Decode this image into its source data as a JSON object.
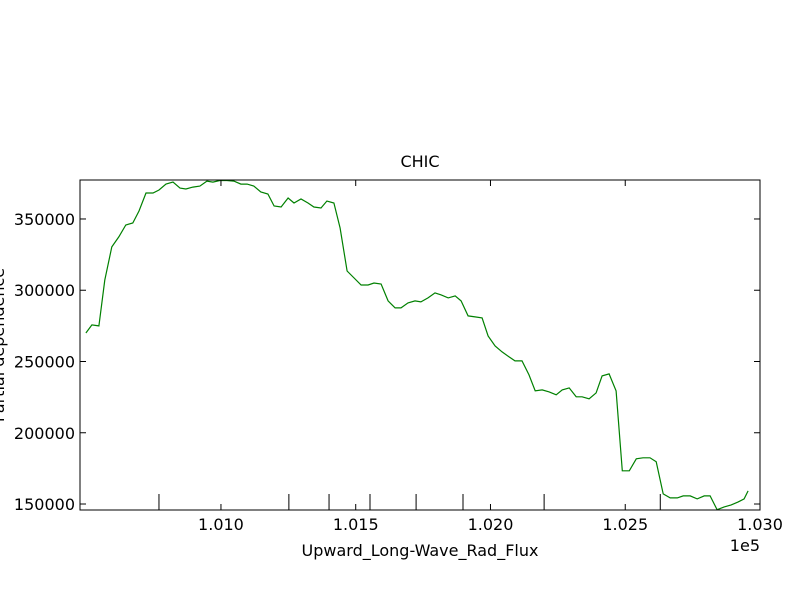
{
  "chart_data": {
    "type": "line",
    "title": "CHIC",
    "x_label": "Upward_Long-Wave_Rad_Flux",
    "y_label": "Partial dependence",
    "x_offset_label": "1e5",
    "xlim": [
      100477,
      103000
    ],
    "ylim": [
      145800,
      377350
    ],
    "xticks": [
      {
        "value": 101000,
        "label": "1.010"
      },
      {
        "value": 101500,
        "label": "1.015"
      },
      {
        "value": 102000,
        "label": "1.020"
      },
      {
        "value": 102500,
        "label": "1.025"
      },
      {
        "value": 103000,
        "label": "1.030"
      }
    ],
    "yticks": [
      150000,
      200000,
      250000,
      300000,
      350000
    ],
    "deciles": [
      100770,
      101252,
      101401,
      101553,
      101724,
      101898,
      102199,
      102630
    ],
    "x": [
      100499,
      100521,
      100547,
      100569,
      100595,
      100621,
      100647,
      100673,
      100696,
      100722,
      100748,
      100770,
      100796,
      100822,
      100848,
      100870,
      100896,
      100922,
      100948,
      100970,
      100996,
      101022,
      101048,
      101074,
      101097,
      101122,
      101148,
      101174,
      101197,
      101223,
      101249,
      101271,
      101297,
      101323,
      101345,
      101371,
      101393,
      101419,
      101442,
      101468,
      101494,
      101520,
      101546,
      101568,
      101594,
      101620,
      101646,
      101668,
      101694,
      101720,
      101742,
      101768,
      101794,
      101817,
      101843,
      101869,
      101891,
      101917,
      101943,
      101969,
      101991,
      102017,
      102043,
      102069,
      102091,
      102117,
      102143,
      102166,
      102192,
      102218,
      102244,
      102266,
      102292,
      102318,
      102340,
      102366,
      102392,
      102414,
      102440,
      102466,
      102489,
      102515,
      102541,
      102566,
      102592,
      102615,
      102641,
      102667,
      102693,
      102715,
      102741,
      102767,
      102793,
      102815,
      102841,
      102867,
      102893,
      102919,
      102941,
      102956
    ],
    "series": [
      {
        "color": "#008000",
        "values": [
          270000,
          275700,
          275000,
          307200,
          330400,
          337400,
          345800,
          347200,
          355600,
          368200,
          368200,
          370300,
          374500,
          375900,
          371700,
          371000,
          372400,
          373100,
          376600,
          375900,
          377000,
          377000,
          376600,
          374500,
          374500,
          373100,
          368900,
          367500,
          359100,
          358400,
          364700,
          361200,
          364000,
          361200,
          358400,
          357700,
          362600,
          361200,
          343700,
          313500,
          308600,
          303700,
          303700,
          305100,
          304400,
          292500,
          287600,
          287600,
          291100,
          292500,
          291800,
          294600,
          298100,
          296700,
          294600,
          296000,
          292500,
          282000,
          281300,
          280600,
          267900,
          260900,
          256700,
          253200,
          250400,
          250400,
          240600,
          229400,
          230100,
          228700,
          226600,
          230100,
          231500,
          225200,
          225200,
          223800,
          228000,
          239900,
          241300,
          229400,
          173300,
          173300,
          181700,
          182400,
          182400,
          179600,
          157100,
          154300,
          154300,
          155700,
          155700,
          153600,
          155700,
          155700,
          146000,
          148000,
          149400,
          151500,
          153600,
          159200
        ]
      }
    ]
  }
}
